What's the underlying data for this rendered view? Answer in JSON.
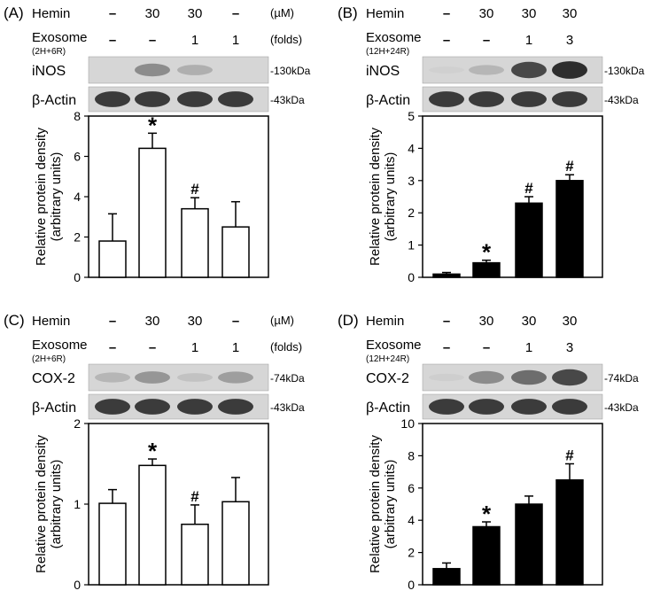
{
  "chart_data": [
    {
      "type": "bar",
      "panel_label": "(A)",
      "treatment_rows": [
        {
          "label": "Hemin",
          "sublabel": "",
          "values": [
            "–",
            "30",
            "30",
            "–"
          ],
          "unit": "(µM)"
        },
        {
          "label": "Exosome",
          "sublabel": "(2H+6R)",
          "values": [
            "–",
            "–",
            "1",
            "1"
          ],
          "unit": "(folds)"
        }
      ],
      "blots": [
        {
          "label": "iNOS",
          "marker": "-130kDa",
          "intensity": [
            0.0,
            0.55,
            0.35,
            0.0
          ]
        },
        {
          "label": "β-Actin",
          "marker": "-43kDa",
          "intensity": [
            0.9,
            0.9,
            0.9,
            0.9
          ]
        }
      ],
      "ylabel_line1": "Relative protein density",
      "ylabel_line2": "(arbitrary units)",
      "ylim": [
        0,
        8
      ],
      "yticks": [
        "0",
        "2",
        "4",
        "6",
        "8"
      ],
      "bar_color": "#ffffff",
      "values": [
        1.8,
        6.4,
        3.4,
        2.5
      ],
      "errors": [
        1.35,
        0.75,
        0.55,
        1.25
      ],
      "annotations": [
        "",
        "*",
        "#",
        ""
      ]
    },
    {
      "type": "bar",
      "panel_label": "(B)",
      "treatment_rows": [
        {
          "label": "Hemin",
          "sublabel": "",
          "values": [
            "–",
            "30",
            "30",
            "30"
          ],
          "unit": ""
        },
        {
          "label": "Exosome",
          "sublabel": "(12H+24R)",
          "values": [
            "–",
            "–",
            "1",
            "3"
          ],
          "unit": ""
        }
      ],
      "blots": [
        {
          "label": "iNOS",
          "marker": "-130kDa",
          "intensity": [
            0.05,
            0.3,
            0.85,
            0.95
          ]
        },
        {
          "label": "β-Actin",
          "marker": "-43kDa",
          "intensity": [
            0.9,
            0.9,
            0.9,
            0.9
          ]
        }
      ],
      "ylabel_line1": "Relative protein density",
      "ylabel_line2": "(arbitrary units)",
      "ylim": [
        0,
        5
      ],
      "yticks": [
        "0",
        "1",
        "2",
        "3",
        "4",
        "5"
      ],
      "bar_color": "#000000",
      "values": [
        0.1,
        0.45,
        2.3,
        3.0
      ],
      "errors": [
        0.05,
        0.08,
        0.2,
        0.18
      ],
      "annotations": [
        "",
        "*",
        "#",
        "#"
      ]
    },
    {
      "type": "bar",
      "panel_label": "(C)",
      "treatment_rows": [
        {
          "label": "Hemin",
          "sublabel": "",
          "values": [
            "–",
            "30",
            "30",
            "–"
          ],
          "unit": "(µM)"
        },
        {
          "label": "Exosome",
          "sublabel": "(2H+6R)",
          "values": [
            "–",
            "–",
            "1",
            "1"
          ],
          "unit": "(folds)"
        }
      ],
      "blots": [
        {
          "label": "COX-2",
          "marker": "-74kDa",
          "intensity": [
            0.3,
            0.5,
            0.2,
            0.45
          ]
        },
        {
          "label": "β-Actin",
          "marker": "-43kDa",
          "intensity": [
            0.9,
            0.9,
            0.9,
            0.9
          ]
        }
      ],
      "ylabel_line1": "Relative protein density",
      "ylabel_line2": "(arbitrary units)",
      "ylim": [
        0,
        2
      ],
      "yticks": [
        "0",
        "1",
        "2"
      ],
      "bar_color": "#ffffff",
      "values": [
        1.01,
        1.48,
        0.75,
        1.03
      ],
      "errors": [
        0.17,
        0.08,
        0.24,
        0.3
      ],
      "annotations": [
        "",
        "*",
        "#",
        ""
      ]
    },
    {
      "type": "bar",
      "panel_label": "(D)",
      "treatment_rows": [
        {
          "label": "Hemin",
          "sublabel": "",
          "values": [
            "–",
            "30",
            "30",
            "30"
          ],
          "unit": ""
        },
        {
          "label": "Exosome",
          "sublabel": "(12H+24R)",
          "values": [
            "–",
            "–",
            "1",
            "3"
          ],
          "unit": ""
        }
      ],
      "blots": [
        {
          "label": "COX-2",
          "marker": "-74kDa",
          "intensity": [
            0.08,
            0.55,
            0.7,
            0.85
          ]
        },
        {
          "label": "β-Actin",
          "marker": "-43kDa",
          "intensity": [
            0.9,
            0.9,
            0.9,
            0.9
          ]
        }
      ],
      "ylabel_line1": "Relative protein density",
      "ylabel_line2": "(arbitrary units)",
      "ylim": [
        0,
        10
      ],
      "yticks": [
        "0",
        "2",
        "4",
        "6",
        "8",
        "10"
      ],
      "bar_color": "#000000",
      "values": [
        1.0,
        3.6,
        5.0,
        6.5
      ],
      "errors": [
        0.35,
        0.3,
        0.5,
        1.0
      ],
      "annotations": [
        "",
        "*",
        "",
        "#"
      ]
    }
  ]
}
